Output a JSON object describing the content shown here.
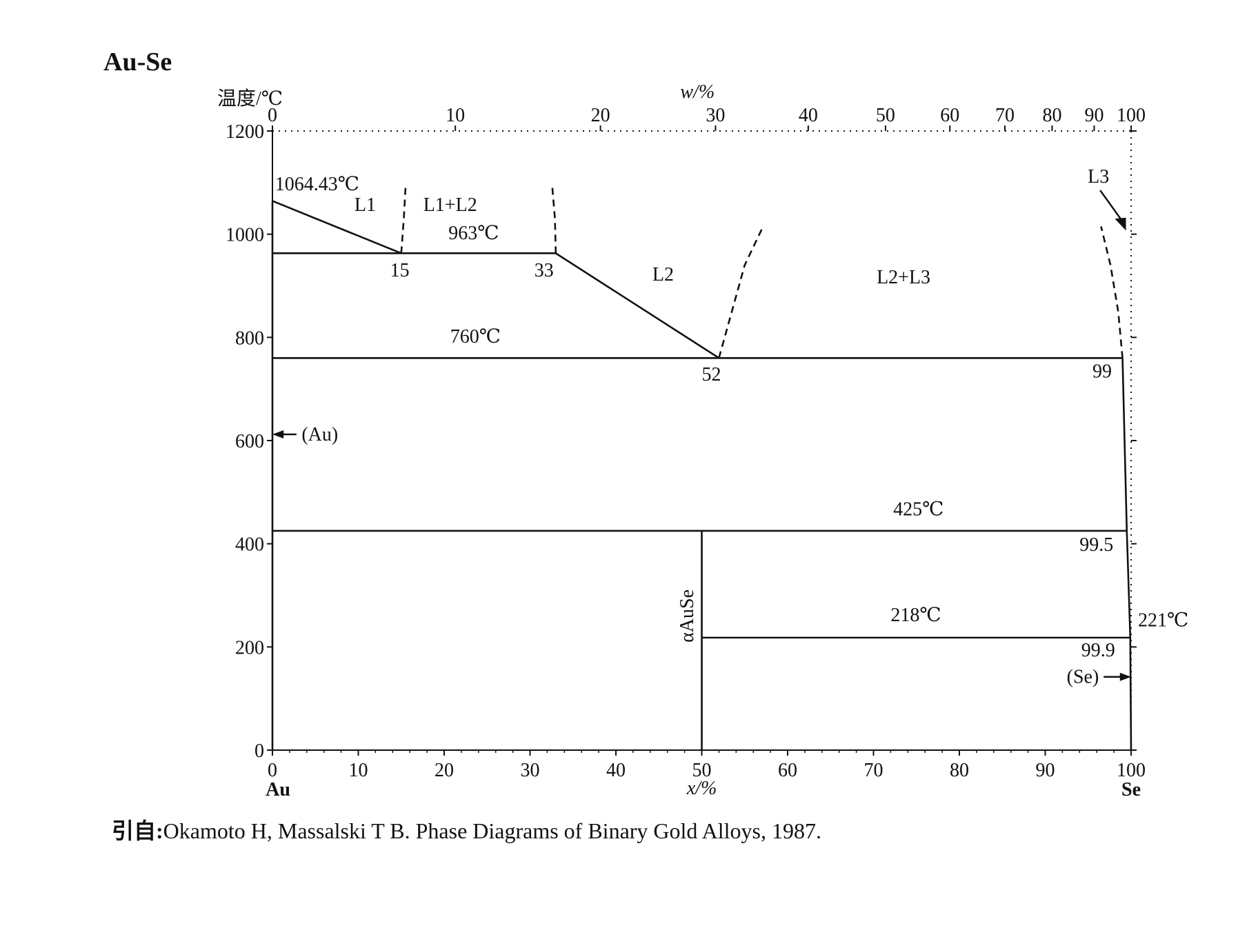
{
  "figure": {
    "title": "Au-Se",
    "citation_prefix": "引自:",
    "citation_text": "Okamoto H, Massalski T B. Phase Diagrams of Binary Gold Alloys, 1987."
  },
  "chart_data": {
    "type": "line",
    "title": "Au-Se",
    "ylabel": "温度/℃",
    "xlabel": "x/%",
    "top_axis_label": "w/%",
    "ylim": [
      0,
      1200
    ],
    "xlim": [
      0,
      100
    ],
    "y_ticks": [
      0,
      200,
      400,
      600,
      800,
      1000,
      1200
    ],
    "x_ticks": [
      0,
      10,
      20,
      30,
      40,
      50,
      60,
      70,
      80,
      90,
      100
    ],
    "top_ticks": [
      {
        "label": "0",
        "x": 0
      },
      {
        "label": "10",
        "x": 21.3
      },
      {
        "label": "20",
        "x": 38.2
      },
      {
        "label": "30",
        "x": 51.6
      },
      {
        "label": "40",
        "x": 62.4
      },
      {
        "label": "50",
        "x": 71.4
      },
      {
        "label": "60",
        "x": 78.9
      },
      {
        "label": "70",
        "x": 85.3
      },
      {
        "label": "80",
        "x": 90.8
      },
      {
        "label": "90",
        "x": 95.7
      },
      {
        "label": "100",
        "x": 100
      }
    ],
    "x_end_labels": {
      "left": "Au",
      "right": "Se"
    },
    "series": [
      {
        "style": "solid",
        "points": [
          [
            0,
            1064.43
          ],
          [
            15,
            963
          ]
        ]
      },
      {
        "style": "solid",
        "points": [
          [
            0,
            963
          ],
          [
            33,
            963
          ]
        ]
      },
      {
        "style": "solid",
        "points": [
          [
            33,
            963
          ],
          [
            52,
            760
          ]
        ]
      },
      {
        "style": "solid",
        "points": [
          [
            0,
            760
          ],
          [
            99,
            760
          ]
        ]
      },
      {
        "style": "solid",
        "points": [
          [
            99,
            760
          ],
          [
            99.5,
            425
          ],
          [
            99.9,
            221
          ],
          [
            100,
            0
          ]
        ]
      },
      {
        "style": "solid",
        "points": [
          [
            0,
            425
          ],
          [
            99.5,
            425
          ]
        ]
      },
      {
        "style": "solid",
        "points": [
          [
            50,
            425
          ],
          [
            50,
            0
          ]
        ]
      },
      {
        "style": "solid",
        "points": [
          [
            50,
            218
          ],
          [
            99.9,
            218
          ]
        ]
      },
      {
        "style": "solid",
        "points": [
          [
            0,
            1064.43
          ],
          [
            0,
            0
          ]
        ]
      },
      {
        "style": "dashed",
        "points": [
          [
            15,
            963
          ],
          [
            15.3,
            1030
          ],
          [
            15.5,
            1090
          ]
        ]
      },
      {
        "style": "dashed",
        "points": [
          [
            33,
            963
          ],
          [
            32.9,
            1030
          ],
          [
            32.6,
            1090
          ]
        ]
      },
      {
        "style": "dashed",
        "points": [
          [
            52,
            760
          ],
          [
            53.5,
            850
          ],
          [
            55,
            940
          ],
          [
            57,
            1010
          ]
        ]
      },
      {
        "style": "dashed",
        "points": [
          [
            99,
            760
          ],
          [
            98.5,
            850
          ],
          [
            97.6,
            940
          ],
          [
            96.5,
            1015
          ]
        ]
      }
    ],
    "annotations": [
      {
        "text": "1064.43℃",
        "x": 0.3,
        "y": 1085
      },
      {
        "text": "963℃",
        "x": 20.5,
        "y": 990
      },
      {
        "text": "760℃",
        "x": 20.7,
        "y": 790
      },
      {
        "text": "425℃",
        "x": 72.3,
        "y": 455
      },
      {
        "text": "218℃",
        "x": 72,
        "y": 250
      },
      {
        "text": "221℃",
        "x": 100.8,
        "y": 240
      },
      {
        "text": "15",
        "x": 13.7,
        "y": 918
      },
      {
        "text": "33",
        "x": 30.5,
        "y": 918
      },
      {
        "text": "52",
        "x": 50,
        "y": 716
      },
      {
        "text": "99",
        "x": 95.5,
        "y": 722
      },
      {
        "text": "99.5",
        "x": 94,
        "y": 386
      },
      {
        "text": "99.9",
        "x": 94.2,
        "y": 182
      },
      {
        "text": "L1",
        "x": 10.8,
        "y": 1045
      },
      {
        "text": "L1+L2",
        "x": 20.7,
        "y": 1045
      },
      {
        "text": "L2",
        "x": 45.5,
        "y": 910
      },
      {
        "text": "L2+L3",
        "x": 73.5,
        "y": 905
      },
      {
        "text": "L3",
        "x": 96.2,
        "y": 1100
      },
      {
        "text": "(Au)",
        "x": 3.4,
        "y": 600
      },
      {
        "text": "(Se)",
        "x": 92.5,
        "y": 130
      },
      {
        "text": "αAuSe",
        "x": 49,
        "y": 260
      }
    ],
    "grid": false,
    "legend": "none"
  }
}
